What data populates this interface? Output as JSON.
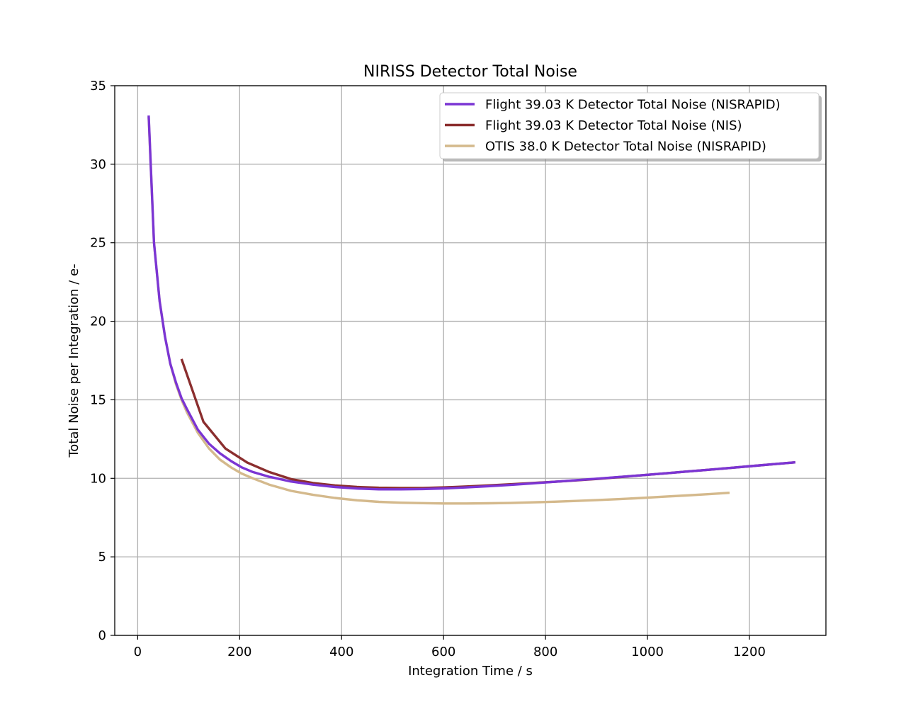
{
  "chart_data": {
    "type": "line",
    "title": "NIRISS Detector Total Noise",
    "xlabel": "Integration Time / s",
    "ylabel": "Total Noise per Integration / e-",
    "xlim": [
      -45,
      1350
    ],
    "ylim": [
      0,
      35
    ],
    "xticks": [
      0,
      200,
      400,
      600,
      800,
      1000,
      1200
    ],
    "yticks": [
      0,
      5,
      10,
      15,
      20,
      25,
      30,
      35
    ],
    "grid": true,
    "legend_position": "top-right",
    "series": [
      {
        "name": "Flight 39.03 K Detector Total Noise (NISRAPID)",
        "color": "#7b35d4",
        "x": [
          21.5,
          32,
          43,
          53.7,
          64,
          75,
          86,
          96.7,
          118,
          140,
          161,
          183,
          204,
          226,
          258,
          300,
          344,
          387,
          430,
          473,
          516,
          559,
          602,
          645,
          688,
          731,
          774,
          817,
          860,
          903,
          946,
          989,
          1032,
          1075,
          1118,
          1161,
          1204,
          1247,
          1290
        ],
        "y": [
          33.1,
          25.0,
          21.3,
          19.0,
          17.3,
          16.1,
          15.1,
          14.4,
          13.1,
          12.2,
          11.6,
          11.1,
          10.7,
          10.4,
          10.1,
          9.8,
          9.6,
          9.45,
          9.35,
          9.3,
          9.3,
          9.32,
          9.36,
          9.42,
          9.5,
          9.58,
          9.68,
          9.78,
          9.88,
          9.98,
          10.09,
          10.2,
          10.31,
          10.43,
          10.54,
          10.66,
          10.78,
          10.9,
          11.02
        ]
      },
      {
        "name": "Flight 39.03 K Detector Total Noise (NIS)",
        "color": "#8b2e2e",
        "x": [
          86,
          129,
          172,
          215,
          258,
          301,
          344,
          387,
          430,
          473,
          516,
          559,
          602,
          645,
          688,
          731,
          774,
          817,
          860,
          903,
          946,
          989,
          1032,
          1075,
          1118,
          1161,
          1204,
          1247,
          1290
        ],
        "y": [
          17.6,
          13.6,
          11.9,
          11.0,
          10.4,
          9.95,
          9.7,
          9.55,
          9.45,
          9.4,
          9.38,
          9.38,
          9.42,
          9.48,
          9.55,
          9.62,
          9.7,
          9.78,
          9.87,
          9.97,
          10.08,
          10.2,
          10.31,
          10.43,
          10.54,
          10.66,
          10.78,
          10.9,
          11.02
        ]
      },
      {
        "name": "OTIS 38.0 K Detector Total Noise (NISRAPID)",
        "color": "#d4b98c",
        "x": [
          21.5,
          32,
          43,
          53.7,
          64,
          75,
          86,
          96.7,
          118,
          140,
          161,
          183,
          204,
          226,
          258,
          301,
          344,
          387,
          430,
          473,
          516,
          559,
          602,
          645,
          688,
          731,
          774,
          817,
          860,
          903,
          946,
          989,
          1032,
          1075,
          1118,
          1161
        ],
        "y": [
          33.0,
          25.0,
          21.3,
          19.0,
          17.3,
          16.0,
          15.0,
          14.2,
          12.9,
          11.9,
          11.2,
          10.7,
          10.3,
          10.0,
          9.6,
          9.2,
          8.95,
          8.75,
          8.6,
          8.5,
          8.45,
          8.42,
          8.4,
          8.4,
          8.41,
          8.43,
          8.47,
          8.51,
          8.56,
          8.62,
          8.68,
          8.75,
          8.83,
          8.91,
          8.99,
          9.08
        ]
      }
    ]
  }
}
